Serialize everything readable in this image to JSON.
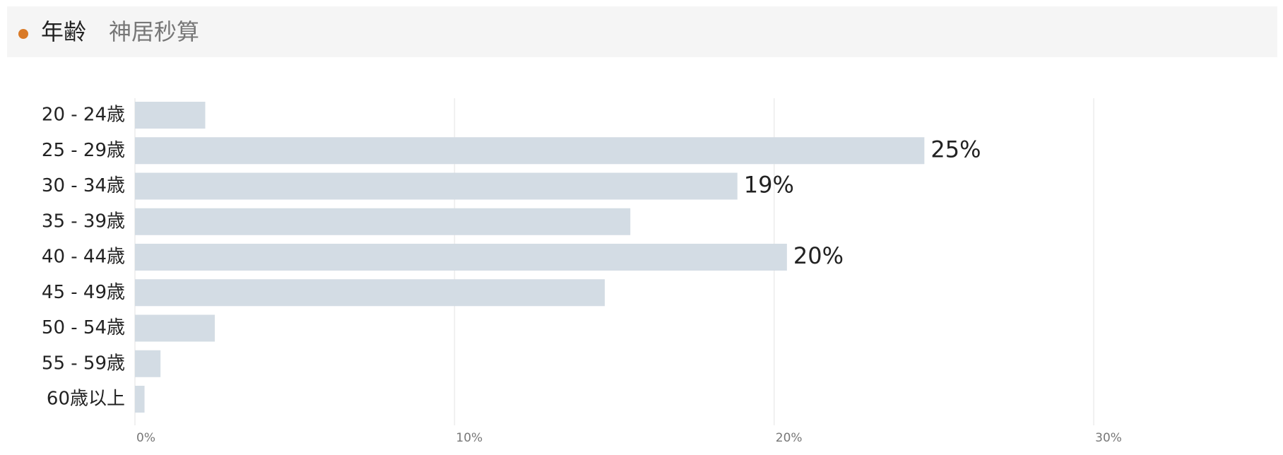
{
  "header": {
    "title": "年齢",
    "subtitle": "神居秒算"
  },
  "chart_data": {
    "type": "barh",
    "categories": [
      "20 - 24歳",
      "25 - 29歳",
      "30 - 34歳",
      "35 - 39歳",
      "40 - 44歳",
      "45 - 49歳",
      "50 - 54歳",
      "55 - 59歳",
      "60歳以上"
    ],
    "values": [
      2.2,
      24.7,
      18.85,
      15.5,
      20.4,
      14.7,
      2.5,
      0.8,
      0.3
    ],
    "value_labels": [
      null,
      "25%",
      "19%",
      null,
      "20%",
      null,
      null,
      null,
      null
    ],
    "color": "#d3dce4",
    "xlim": [
      0,
      35.7
    ],
    "xticks": [
      {
        "value": 0,
        "label": "0%"
      },
      {
        "value": 10,
        "label": "10%"
      },
      {
        "value": 20,
        "label": "20%"
      },
      {
        "value": 30,
        "label": "30%"
      }
    ],
    "grid": true
  }
}
